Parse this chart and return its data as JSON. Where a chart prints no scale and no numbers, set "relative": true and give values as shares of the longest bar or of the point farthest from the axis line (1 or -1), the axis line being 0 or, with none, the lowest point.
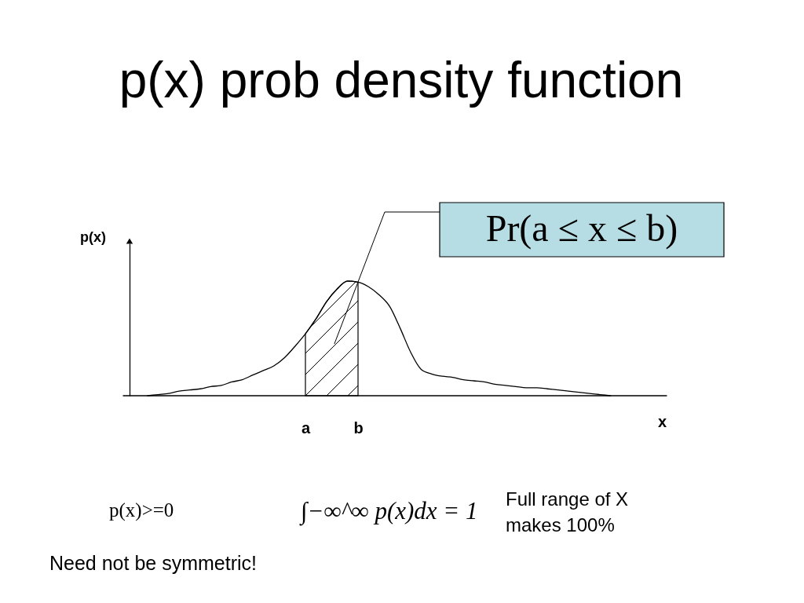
{
  "chart_data": {
    "type": "line",
    "title": "p(x)  prob density function",
    "xlabel": "x",
    "ylabel": "p(x)",
    "relative": true,
    "categories": [
      null,
      null,
      null,
      null,
      null,
      null,
      null,
      null,
      null,
      null,
      null,
      null,
      null,
      null,
      null,
      "a",
      null,
      null,
      null,
      null,
      "b",
      null,
      null,
      null,
      null,
      null,
      null,
      null,
      null,
      null,
      null,
      null,
      null,
      null,
      null,
      null,
      null,
      null,
      null,
      null,
      null,
      null,
      null,
      null,
      null
    ],
    "series": [
      {
        "color": "#000000",
        "values": [
          0,
          0.01,
          0.02,
          0.04,
          0.05,
          0.06,
          0.08,
          0.09,
          0.12,
          0.14,
          0.18,
          0.22,
          0.26,
          0.33,
          0.43,
          0.54,
          0.67,
          0.82,
          0.93,
          1,
          0.99,
          0.95,
          0.88,
          0.78,
          0.59,
          0.38,
          0.23,
          0.19,
          0.17,
          0.16,
          0.14,
          0.13,
          0.12,
          0.1,
          0.09,
          0.08,
          0.07,
          0.07,
          0.06,
          0.05,
          0.04,
          0.03,
          0.02,
          0.01,
          0
        ]
      },
      {
        "type": "area",
        "name": "Pr(a ≤ x ≤ b)",
        "color": "#000000",
        "values": [
          null,
          null,
          null,
          null,
          null,
          null,
          null,
          null,
          null,
          null,
          null,
          null,
          null,
          null,
          null,
          0.54,
          0.67,
          0.82,
          0.93,
          1,
          0.99,
          null,
          null,
          null,
          null,
          null,
          null,
          null,
          null,
          null,
          null,
          null,
          null,
          null,
          null,
          null,
          null,
          null,
          null,
          null,
          null,
          null,
          null,
          null,
          null
        ]
      }
    ],
    "annotations": [
      "p(x)>=0",
      "∫−∞^∞ p(x)dx = 1",
      "Full range of X\nmakes 100%",
      "Need not be symmetric!"
    ]
  }
}
